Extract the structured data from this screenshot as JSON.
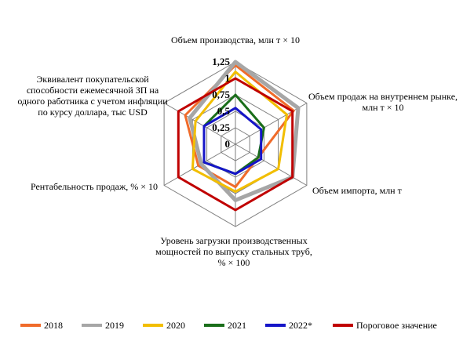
{
  "chart_data": {
    "type": "radar",
    "axes": [
      "Объем производства,  млн т × 10",
      "Объем продаж на внутреннем рынке, млн т  × 10",
      "Объем импорта, млн т",
      "Уровень загрузки производственных  мощностей по выпуску стальных  труб, % × 100",
      "Рентабельность  продаж, % × 10",
      "Эквивалент  покупательской способности ежемесячной ЗП на одного работника с учетом инфляции по курсу доллара, тыс USD"
    ],
    "ticks": [
      "0",
      "0,25",
      "0,5",
      "0,75",
      "1",
      "1,25"
    ],
    "rmax": 1.25,
    "series": [
      {
        "name": "2018",
        "color": "#f06b2a",
        "values": [
          1.2,
          1.02,
          0.4,
          0.65,
          0.65,
          0.88
        ]
      },
      {
        "name": "2019",
        "color": "#a6a6a6",
        "values": [
          1.25,
          1.1,
          1.0,
          0.85,
          0.6,
          0.8
        ]
      },
      {
        "name": "2020",
        "color": "#f2be00",
        "values": [
          1.1,
          0.9,
          0.75,
          0.72,
          0.75,
          0.7
        ]
      },
      {
        "name": "2021",
        "color": "#1a6e1a",
        "values": [
          0.75,
          0.5,
          0.4,
          0.45,
          0.55,
          0.55
        ]
      },
      {
        "name": "2022*",
        "color": "#1515c8",
        "values": [
          0.55,
          0.45,
          0.45,
          0.45,
          0.55,
          0.55
        ]
      },
      {
        "name": "Пороговое значение",
        "color": "#c00000",
        "values": [
          1.0,
          1.0,
          1.0,
          1.0,
          1.0,
          1.0
        ]
      }
    ]
  }
}
